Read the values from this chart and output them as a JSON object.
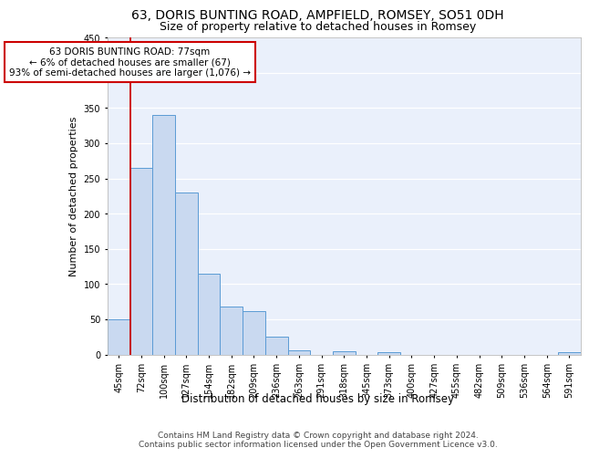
{
  "title1": "63, DORIS BUNTING ROAD, AMPFIELD, ROMSEY, SO51 0DH",
  "title2": "Size of property relative to detached houses in Romsey",
  "xlabel": "Distribution of detached houses by size in Romsey",
  "ylabel": "Number of detached properties",
  "categories": [
    "45sqm",
    "72sqm",
    "100sqm",
    "127sqm",
    "154sqm",
    "182sqm",
    "209sqm",
    "236sqm",
    "263sqm",
    "291sqm",
    "318sqm",
    "345sqm",
    "373sqm",
    "400sqm",
    "427sqm",
    "455sqm",
    "482sqm",
    "509sqm",
    "536sqm",
    "564sqm",
    "591sqm"
  ],
  "values": [
    50,
    265,
    340,
    230,
    115,
    68,
    62,
    25,
    6,
    0,
    5,
    0,
    4,
    0,
    0,
    0,
    0,
    0,
    0,
    0,
    4
  ],
  "bar_color": "#c9d9f0",
  "bar_edge_color": "#5b9bd5",
  "red_line_x": 1,
  "annotation_text": "63 DORIS BUNTING ROAD: 77sqm\n← 6% of detached houses are smaller (67)\n93% of semi-detached houses are larger (1,076) →",
  "annotation_box_color": "#ffffff",
  "annotation_border_color": "#cc0000",
  "footer_text": "Contains HM Land Registry data © Crown copyright and database right 2024.\nContains public sector information licensed under the Open Government Licence v3.0.",
  "ylim": [
    0,
    450
  ],
  "background_color": "#eaf0fb",
  "grid_color": "#ffffff",
  "title1_fontsize": 10,
  "title2_fontsize": 9,
  "xlabel_fontsize": 8.5,
  "ylabel_fontsize": 8,
  "tick_fontsize": 7,
  "footer_fontsize": 6.5,
  "annot_fontsize": 7.5
}
